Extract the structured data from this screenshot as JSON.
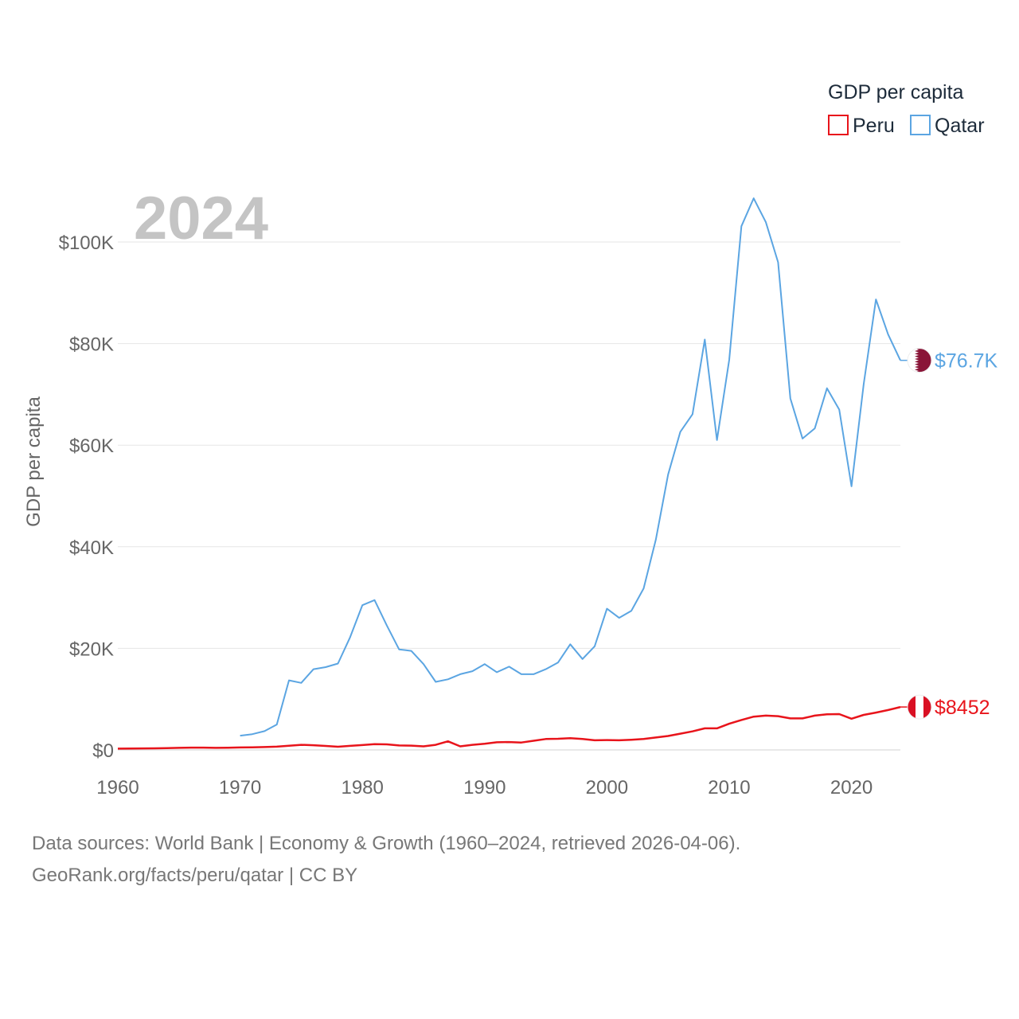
{
  "chart_data": {
    "type": "line",
    "year_label": "2024",
    "ylabel": "GDP per capita",
    "legend_title": "GDP per capita",
    "xlim": [
      1960,
      2024
    ],
    "ylim": [
      0,
      110000
    ],
    "x_ticks": [
      1960,
      1970,
      1980,
      1990,
      2000,
      2010,
      2020
    ],
    "y_ticks": [
      {
        "value": 0,
        "label": "$0"
      },
      {
        "value": 20000,
        "label": "$20K"
      },
      {
        "value": 40000,
        "label": "$40K"
      },
      {
        "value": 60000,
        "label": "$60K"
      },
      {
        "value": 80000,
        "label": "$80K"
      },
      {
        "value": 100000,
        "label": "$100K"
      }
    ],
    "series": [
      {
        "name": "Peru",
        "color": "#e8141b",
        "end_label": "$8452",
        "flag": "peru-flag",
        "points": [
          [
            1960,
            253
          ],
          [
            1961,
            275
          ],
          [
            1962,
            305
          ],
          [
            1963,
            320
          ],
          [
            1964,
            350
          ],
          [
            1965,
            400
          ],
          [
            1966,
            460
          ],
          [
            1967,
            450
          ],
          [
            1968,
            400
          ],
          [
            1969,
            440
          ],
          [
            1970,
            480
          ],
          [
            1971,
            520
          ],
          [
            1972,
            560
          ],
          [
            1973,
            650
          ],
          [
            1974,
            830
          ],
          [
            1975,
            1000
          ],
          [
            1976,
            920
          ],
          [
            1977,
            780
          ],
          [
            1978,
            620
          ],
          [
            1979,
            800
          ],
          [
            1980,
            950
          ],
          [
            1981,
            1150
          ],
          [
            1982,
            1100
          ],
          [
            1983,
            870
          ],
          [
            1984,
            850
          ],
          [
            1985,
            700
          ],
          [
            1986,
            1000
          ],
          [
            1987,
            1700
          ],
          [
            1988,
            700
          ],
          [
            1989,
            1000
          ],
          [
            1990,
            1200
          ],
          [
            1991,
            1500
          ],
          [
            1992,
            1550
          ],
          [
            1993,
            1450
          ],
          [
            1994,
            1800
          ],
          [
            1995,
            2150
          ],
          [
            1996,
            2200
          ],
          [
            1997,
            2300
          ],
          [
            1998,
            2150
          ],
          [
            1999,
            1900
          ],
          [
            2000,
            1950
          ],
          [
            2001,
            1900
          ],
          [
            2002,
            2000
          ],
          [
            2003,
            2150
          ],
          [
            2004,
            2450
          ],
          [
            2005,
            2750
          ],
          [
            2006,
            3200
          ],
          [
            2007,
            3650
          ],
          [
            2008,
            4250
          ],
          [
            2009,
            4250
          ],
          [
            2010,
            5150
          ],
          [
            2011,
            5900
          ],
          [
            2012,
            6550
          ],
          [
            2013,
            6750
          ],
          [
            2014,
            6650
          ],
          [
            2015,
            6200
          ],
          [
            2016,
            6200
          ],
          [
            2017,
            6750
          ],
          [
            2018,
            7000
          ],
          [
            2019,
            7050
          ],
          [
            2020,
            6150
          ],
          [
            2021,
            6900
          ],
          [
            2022,
            7350
          ],
          [
            2023,
            7850
          ],
          [
            2024,
            8452
          ]
        ]
      },
      {
        "name": "Qatar",
        "color": "#5ba5e2",
        "end_label": "$76.7K",
        "flag": "qatar-flag",
        "points": [
          [
            1970,
            2800
          ],
          [
            1971,
            3100
          ],
          [
            1972,
            3700
          ],
          [
            1973,
            5000
          ],
          [
            1974,
            13700
          ],
          [
            1975,
            13200
          ],
          [
            1976,
            15900
          ],
          [
            1977,
            16300
          ],
          [
            1978,
            17000
          ],
          [
            1979,
            22200
          ],
          [
            1980,
            28500
          ],
          [
            1981,
            29500
          ],
          [
            1982,
            24500
          ],
          [
            1983,
            19800
          ],
          [
            1984,
            19500
          ],
          [
            1985,
            16900
          ],
          [
            1986,
            13400
          ],
          [
            1987,
            13900
          ],
          [
            1988,
            14900
          ],
          [
            1989,
            15500
          ],
          [
            1990,
            16900
          ],
          [
            1991,
            15300
          ],
          [
            1992,
            16400
          ],
          [
            1993,
            14900
          ],
          [
            1994,
            14900
          ],
          [
            1995,
            15900
          ],
          [
            1996,
            17200
          ],
          [
            1997,
            20800
          ],
          [
            1998,
            17900
          ],
          [
            1999,
            20400
          ],
          [
            2000,
            27800
          ],
          [
            2001,
            26000
          ],
          [
            2002,
            27400
          ],
          [
            2003,
            31800
          ],
          [
            2004,
            41400
          ],
          [
            2005,
            54200
          ],
          [
            2006,
            62600
          ],
          [
            2007,
            66100
          ],
          [
            2008,
            80800
          ],
          [
            2009,
            61000
          ],
          [
            2010,
            76800
          ],
          [
            2011,
            103100
          ],
          [
            2012,
            108600
          ],
          [
            2013,
            103900
          ],
          [
            2014,
            96000
          ],
          [
            2015,
            69200
          ],
          [
            2016,
            61300
          ],
          [
            2017,
            63300
          ],
          [
            2018,
            71200
          ],
          [
            2019,
            67000
          ],
          [
            2020,
            51900
          ],
          [
            2021,
            72000
          ],
          [
            2022,
            88700
          ],
          [
            2023,
            81800
          ],
          [
            2024,
            76700
          ]
        ]
      }
    ],
    "colors": {
      "peru_flag_red": "#d91023",
      "qatar_flag_maroon": "#8a1538"
    }
  },
  "source": {
    "line1": "Data sources: World Bank | Economy & Growth (1960–2024, retrieved 2026-04-06).",
    "line2": "GeoRank.org/facts/peru/qatar | CC BY"
  }
}
